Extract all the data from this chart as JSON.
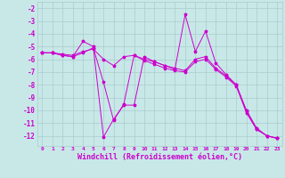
{
  "background_color": "#c8e8e8",
  "grid_color": "#aacccc",
  "line_color": "#cc00cc",
  "xlabel": "Windchill (Refroidissement éolien,°C)",
  "xlabel_fontsize": 6,
  "xtick_fontsize": 4.5,
  "ytick_fontsize": 5.5,
  "ylim": [
    -12.8,
    -1.5
  ],
  "xlim": [
    -0.5,
    23.5
  ],
  "yticks": [
    -12,
    -11,
    -10,
    -9,
    -8,
    -7,
    -6,
    -5,
    -4,
    -3,
    -2
  ],
  "xticks": [
    0,
    1,
    2,
    3,
    4,
    5,
    6,
    7,
    8,
    9,
    10,
    11,
    12,
    13,
    14,
    15,
    16,
    17,
    18,
    19,
    20,
    21,
    22,
    23
  ],
  "series": [
    {
      "x": [
        0,
        1,
        2,
        3,
        4,
        5,
        6,
        7,
        8,
        9,
        10,
        11,
        12,
        13,
        14,
        15,
        16,
        17,
        18,
        19,
        20,
        21,
        22,
        23
      ],
      "y": [
        -5.5,
        -5.5,
        -5.7,
        -5.8,
        -4.6,
        -5.0,
        -12.1,
        -10.7,
        -9.6,
        -9.6,
        -5.8,
        -6.2,
        -6.5,
        -6.8,
        -2.5,
        -5.4,
        -3.8,
        -6.3,
        -7.2,
        -8.0,
        -10.0,
        -11.4,
        -12.0,
        -12.2
      ]
    },
    {
      "x": [
        0,
        1,
        2,
        3,
        4,
        5,
        6,
        7,
        8,
        9,
        10,
        11,
        12,
        13,
        14,
        15,
        16,
        17,
        18,
        19,
        20,
        21,
        22,
        23
      ],
      "y": [
        -5.5,
        -5.5,
        -5.7,
        -5.8,
        -5.5,
        -5.1,
        -7.8,
        -10.8,
        -9.5,
        -5.7,
        -6.0,
        -6.2,
        -6.5,
        -6.7,
        -6.9,
        -6.0,
        -5.8,
        -6.7,
        -7.3,
        -8.0,
        -10.1,
        -11.5,
        -12.0,
        -12.2
      ]
    },
    {
      "x": [
        0,
        1,
        2,
        3,
        4,
        5,
        6,
        7,
        8,
        9,
        10,
        11,
        12,
        13,
        14,
        15,
        16,
        17,
        18,
        19,
        20,
        21,
        22,
        23
      ],
      "y": [
        -5.5,
        -5.5,
        -5.6,
        -5.7,
        -5.4,
        -5.2,
        -6.0,
        -6.5,
        -5.8,
        -5.7,
        -6.1,
        -6.4,
        -6.7,
        -6.9,
        -7.0,
        -6.2,
        -6.0,
        -6.8,
        -7.4,
        -8.1,
        -10.2,
        -11.5,
        -12.0,
        -12.2
      ]
    }
  ]
}
